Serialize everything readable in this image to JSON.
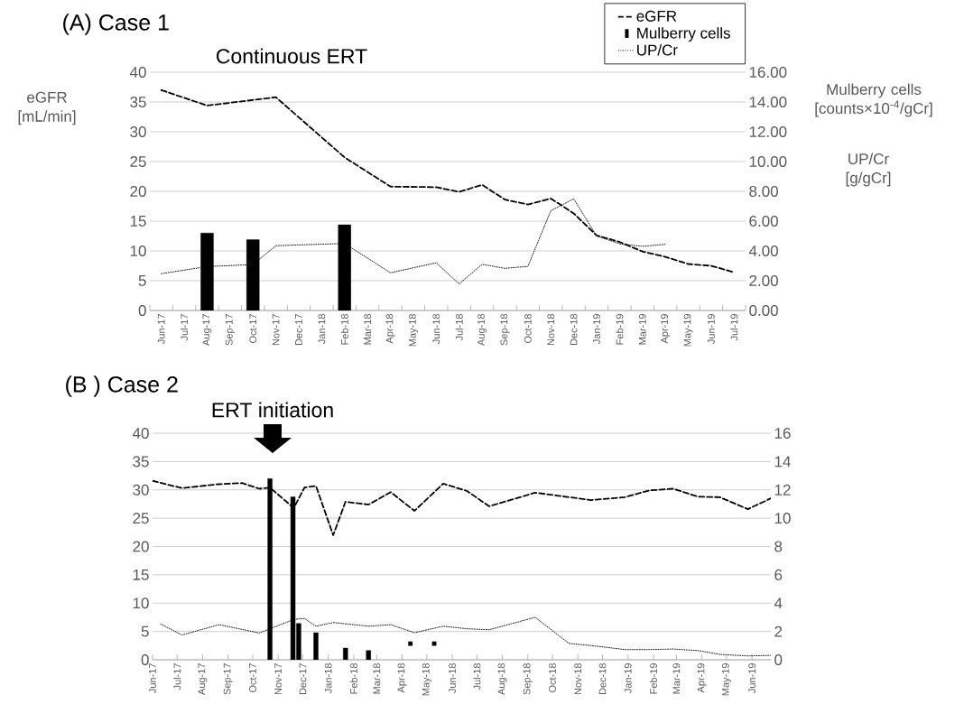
{
  "chart_data": [
    {
      "type": "line",
      "title": "(A) Case 1",
      "subtitle": "Continuous ERT",
      "ylabel": "eGFR [mL/min]",
      "y2label": "Mulberry cells [counts×10$^{-4}$/gCr]",
      "annotations": [
        "UP/Cr [g/gCr]"
      ],
      "categories": [
        "Jun-17",
        "Jul-17",
        "Aug-17",
        "Sep-17",
        "Oct-17",
        "Nov-17",
        "Dec-17",
        "Jan-18",
        "Feb-18",
        "Mar-18",
        "Apr-18",
        "May-18",
        "Jun-18",
        "Jul-18",
        "Aug-18",
        "Sep-18",
        "Oct-18",
        "Nov-18",
        "Dec-18",
        "Jan-19",
        "Feb-19",
        "Mar-19",
        "Apr-19",
        "May-19",
        "Jun-19",
        "Jul-19"
      ],
      "ylim": [
        0,
        40
      ],
      "yticks": [
        0,
        5,
        10,
        15,
        20,
        25,
        30,
        35,
        40
      ],
      "y2lim": [
        0,
        16
      ],
      "y2ticks": [
        {
          "value": 0,
          "label": "0.00"
        },
        {
          "value": 2,
          "label": "2.00"
        },
        {
          "value": 4,
          "label": "4.00"
        },
        {
          "value": 6,
          "label": "6.00"
        },
        {
          "value": 8,
          "label": "8.00"
        },
        {
          "value": 10,
          "label": "10.00"
        },
        {
          "value": 12,
          "label": "12.00"
        },
        {
          "value": 14,
          "label": "14.00"
        },
        {
          "value": 16,
          "label": "16.00"
        }
      ],
      "grid": "y",
      "legend": "top right",
      "series": [
        {
          "name": "eGFR",
          "color": "#000000",
          "line_style": "dashed",
          "values": [
            37,
            null,
            34.4,
            null,
            null,
            35.8,
            null,
            null,
            25.7,
            null,
            20.8,
            null,
            20.7,
            19.9,
            21.1,
            18.6,
            17.8,
            18.8,
            16.3,
            12.6,
            11.5,
            9.9,
            9.0,
            7.8,
            7.5,
            6.4
          ]
        },
        {
          "name": "Mulberry cells",
          "type": "bar",
          "axis": "y2",
          "color": "#000000",
          "values": [
            null,
            null,
            5.2,
            null,
            4.75,
            null,
            null,
            null,
            5.75,
            null,
            null,
            null,
            null,
            null,
            null,
            null,
            null,
            null,
            null,
            null,
            null,
            null,
            null,
            null,
            null,
            null
          ]
        },
        {
          "name": "UP/Cr",
          "axis": "y2",
          "color": "#000000",
          "line_style": "dotted",
          "values": [
            2.47,
            null,
            2.95,
            null,
            3.08,
            4.35,
            null,
            null,
            4.5,
            null,
            2.53,
            null,
            3.2,
            1.78,
            3.1,
            2.83,
            2.96,
            6.7,
            7.5,
            5.0,
            4.48,
            4.31,
            4.44,
            null,
            null,
            null
          ]
        }
      ]
    },
    {
      "type": "line",
      "title": "(B ) Case 2",
      "annotations": [
        "ERT initiation"
      ],
      "xlim": [
        "2017-06-01",
        "2019-06-24"
      ],
      "xticks": [
        {
          "value": "2017-06-01",
          "label": "Jun-17"
        },
        {
          "value": "2017-07-01",
          "label": "Jul-17"
        },
        {
          "value": "2017-08-01",
          "label": "Aug-17"
        },
        {
          "value": "2017-09-01",
          "label": "Sep-17"
        },
        {
          "value": "2017-10-01",
          "label": "Oct-17"
        },
        {
          "value": "2017-11-01",
          "label": "Nov-17"
        },
        {
          "value": "2017-12-01",
          "label": "Dec-17"
        },
        {
          "value": "2018-01-01",
          "label": "Jan-18"
        },
        {
          "value": "2018-02-01",
          "label": "Feb-18"
        },
        {
          "value": "2018-03-01",
          "label": "Mar-18"
        },
        {
          "value": "2018-04-01",
          "label": "Apr-18"
        },
        {
          "value": "2018-05-01",
          "label": "May-18"
        },
        {
          "value": "2018-06-01",
          "label": "Jun-18"
        },
        {
          "value": "2018-07-01",
          "label": "Jul-18"
        },
        {
          "value": "2018-08-01",
          "label": "Aug-18"
        },
        {
          "value": "2018-09-01",
          "label": "Sep-18"
        },
        {
          "value": "2018-10-01",
          "label": "Oct-18"
        },
        {
          "value": "2018-11-01",
          "label": "Nov-18"
        },
        {
          "value": "2018-12-01",
          "label": "Dec-18"
        },
        {
          "value": "2019-01-01",
          "label": "Jan-19"
        },
        {
          "value": "2019-02-01",
          "label": "Feb-19"
        },
        {
          "value": "2019-03-01",
          "label": "Mar-19"
        },
        {
          "value": "2019-04-01",
          "label": "Apr-19"
        },
        {
          "value": "2019-05-01",
          "label": "May-19"
        },
        {
          "value": "2019-06-01",
          "label": "Jun-19"
        }
      ],
      "ylim": [
        0,
        40
      ],
      "yticks": [
        0,
        5,
        10,
        15,
        20,
        25,
        30,
        35,
        40
      ],
      "y2lim": [
        0,
        16
      ],
      "y2ticks": [
        0,
        2,
        4,
        6,
        8,
        10,
        12,
        14,
        16
      ],
      "grid": "y",
      "series": [
        {
          "color": "#000000",
          "line_style": "dashed",
          "x": [
            "2017-06-01",
            "2017-07-07",
            "2017-08-20",
            "2017-09-18",
            "2017-10-09",
            "2017-10-22",
            "2017-11-20",
            "2017-12-03",
            "2017-12-17",
            "2018-01-07",
            "2018-01-22",
            "2018-02-19",
            "2018-03-18",
            "2018-04-16",
            "2018-05-21",
            "2018-06-19",
            "2018-07-16",
            "2018-09-10",
            "2018-11-17",
            "2018-12-28",
            "2019-01-27",
            "2019-02-25",
            "2019-03-27",
            "2019-04-23",
            "2019-05-27",
            "2019-06-24"
          ],
          "values": [
            31.6,
            30.3,
            31.0,
            31.2,
            30.2,
            30.4,
            26.8,
            30.4,
            30.7,
            22.0,
            27.9,
            27.4,
            29.6,
            26.3,
            31.1,
            29.8,
            27.1,
            29.5,
            28.2,
            28.7,
            29.9,
            30.2,
            28.8,
            28.7,
            26.6,
            28.5
          ]
        },
        {
          "type": "bar",
          "axis": "y2",
          "color": "#000000",
          "x": [
            "2017-10-22",
            "2017-11-19",
            "2017-11-26",
            "2017-12-17",
            "2018-01-22",
            "2018-02-19"
          ],
          "values": [
            12.8,
            11.5,
            2.57,
            1.91,
            0.83,
            0.66
          ]
        },
        {
          "type": "scatter",
          "axis": "y2",
          "color": "#000000",
          "marker": "square",
          "x": [
            "2018-04-11",
            "2018-05-10"
          ],
          "values": [
            1.14,
            1.14
          ]
        },
        {
          "axis": "y2",
          "color": "#000000",
          "line_style": "dotted",
          "x": [
            "2017-06-11",
            "2017-07-07",
            "2017-08-21",
            "2017-10-09",
            "2017-11-20",
            "2017-12-03",
            "2017-12-17",
            "2018-01-07",
            "2018-02-19",
            "2018-03-18",
            "2018-04-16",
            "2018-05-21",
            "2018-06-19",
            "2018-07-16",
            "2018-09-10",
            "2018-10-21",
            "2018-11-27",
            "2018-12-28",
            "2019-01-27",
            "2019-02-25",
            "2019-03-27",
            "2019-04-23",
            "2019-05-27",
            "2019-06-24"
          ],
          "values": [
            2.52,
            1.75,
            2.48,
            1.89,
            2.85,
            2.92,
            2.37,
            2.63,
            2.37,
            2.48,
            1.91,
            2.37,
            2.19,
            2.12,
            3.0,
            1.16,
            0.94,
            0.72,
            0.72,
            0.76,
            0.65,
            0.38,
            0.27,
            0.31
          ]
        }
      ]
    }
  ]
}
